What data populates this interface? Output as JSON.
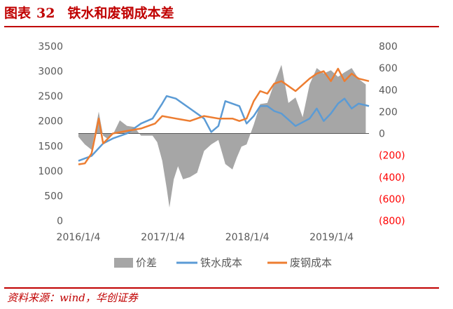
{
  "header": {
    "label": "图表",
    "number": "32",
    "title": "铁水和废钢成本差"
  },
  "source": "资料来源：wind，华创证券",
  "colors": {
    "spread": "#a6a6a6",
    "hot_metal": "#5b9bd5",
    "scrap": "#ed7d31",
    "brand": "#c00000",
    "negative_axis": "#ff0000"
  },
  "chart_data": {
    "type": "line",
    "x_ticks": [
      "2016/1/4",
      "2017/1/4",
      "2018/1/4",
      "2019/1/4"
    ],
    "xlim": [
      "2016-01-04",
      "2019-06-15"
    ],
    "y_left": {
      "lim": [
        0,
        3500
      ],
      "ticks": [
        "0",
        "500",
        "1000",
        "1500",
        "2000",
        "2500",
        "3000",
        "3500"
      ]
    },
    "y_right": {
      "lim": [
        -800,
        800
      ],
      "ticks": [
        "(800)",
        "(600)",
        "(400)",
        "(200)",
        "0",
        "200",
        "400",
        "600",
        "800"
      ]
    },
    "legend": {
      "position": "bottom",
      "entries": [
        "价差",
        "铁水成本",
        "废钢成本"
      ]
    },
    "series": [
      {
        "name": "价差",
        "type": "area",
        "axis": "right",
        "x": [
          "2016-01-04",
          "2016-02-01",
          "2016-03-01",
          "2016-04-01",
          "2016-04-20",
          "2016-05-10",
          "2016-06-01",
          "2016-07-01",
          "2016-08-01",
          "2016-09-01",
          "2016-10-01",
          "2016-11-01",
          "2016-11-20",
          "2016-12-10",
          "2017-01-01",
          "2017-01-20",
          "2017-02-01",
          "2017-02-20",
          "2017-03-10",
          "2017-04-01",
          "2017-05-01",
          "2017-06-01",
          "2017-07-01",
          "2017-08-01",
          "2017-09-01",
          "2017-10-01",
          "2017-11-01",
          "2017-11-20",
          "2017-12-10",
          "2018-01-01",
          "2018-02-01",
          "2018-03-01",
          "2018-04-01",
          "2018-05-01",
          "2018-06-01",
          "2018-07-01",
          "2018-08-01",
          "2018-09-01",
          "2018-10-01",
          "2018-11-01",
          "2018-12-01",
          "2019-01-01",
          "2019-02-01",
          "2019-03-01",
          "2019-04-01",
          "2019-05-01",
          "2019-06-01"
        ],
        "values": [
          -30,
          -100,
          -150,
          200,
          -20,
          -50,
          -10,
          120,
          70,
          60,
          -20,
          -20,
          -20,
          -80,
          -250,
          -500,
          -680,
          -420,
          -300,
          -420,
          -400,
          -360,
          -160,
          -100,
          -60,
          -280,
          -330,
          -220,
          -120,
          -100,
          80,
          270,
          280,
          460,
          630,
          280,
          330,
          150,
          450,
          600,
          550,
          580,
          520,
          560,
          600,
          500,
          450
        ]
      },
      {
        "name": "铁水成本",
        "type": "line",
        "axis": "left",
        "x": [
          "2016-01-04",
          "2016-03-01",
          "2016-04-20",
          "2016-06-01",
          "2016-08-01",
          "2016-10-01",
          "2016-11-20",
          "2017-01-01",
          "2017-01-20",
          "2017-03-01",
          "2017-05-01",
          "2017-07-01",
          "2017-08-01",
          "2017-09-01",
          "2017-10-01",
          "2017-12-01",
          "2018-01-01",
          "2018-02-01",
          "2018-03-01",
          "2018-04-01",
          "2018-05-01",
          "2018-06-01",
          "2018-08-01",
          "2018-10-01",
          "2018-11-01",
          "2018-12-01",
          "2019-01-01",
          "2019-02-01",
          "2019-03-01",
          "2019-04-01",
          "2019-05-01",
          "2019-06-15"
        ],
        "values": [
          1200,
          1300,
          1550,
          1650,
          1750,
          1950,
          2050,
          2350,
          2500,
          2450,
          2250,
          2050,
          1780,
          1900,
          2400,
          2300,
          1950,
          2100,
          2300,
          2300,
          2200,
          2150,
          1900,
          2050,
          2250,
          2000,
          2150,
          2350,
          2450,
          2250,
          2350,
          2300
        ]
      },
      {
        "name": "废钢成本",
        "type": "line",
        "axis": "left",
        "x": [
          "2016-01-04",
          "2016-02-01",
          "2016-03-01",
          "2016-04-01",
          "2016-04-20",
          "2016-06-01",
          "2016-08-01",
          "2016-10-01",
          "2016-12-01",
          "2017-01-01",
          "2017-03-01",
          "2017-05-01",
          "2017-07-01",
          "2017-09-01",
          "2017-11-01",
          "2017-12-01",
          "2018-01-01",
          "2018-02-01",
          "2018-03-01",
          "2018-04-01",
          "2018-05-01",
          "2018-06-01",
          "2018-08-01",
          "2018-10-01",
          "2018-11-01",
          "2018-12-01",
          "2019-01-01",
          "2019-02-01",
          "2019-03-01",
          "2019-04-01",
          "2019-05-01",
          "2019-06-15"
        ],
        "values": [
          1130,
          1150,
          1350,
          2050,
          1550,
          1750,
          1800,
          1850,
          1950,
          2100,
          2050,
          2000,
          2100,
          2050,
          2050,
          2000,
          2050,
          2400,
          2600,
          2550,
          2750,
          2800,
          2600,
          2850,
          2950,
          3000,
          2800,
          3050,
          2800,
          2950,
          2850,
          2800
        ]
      }
    ]
  }
}
